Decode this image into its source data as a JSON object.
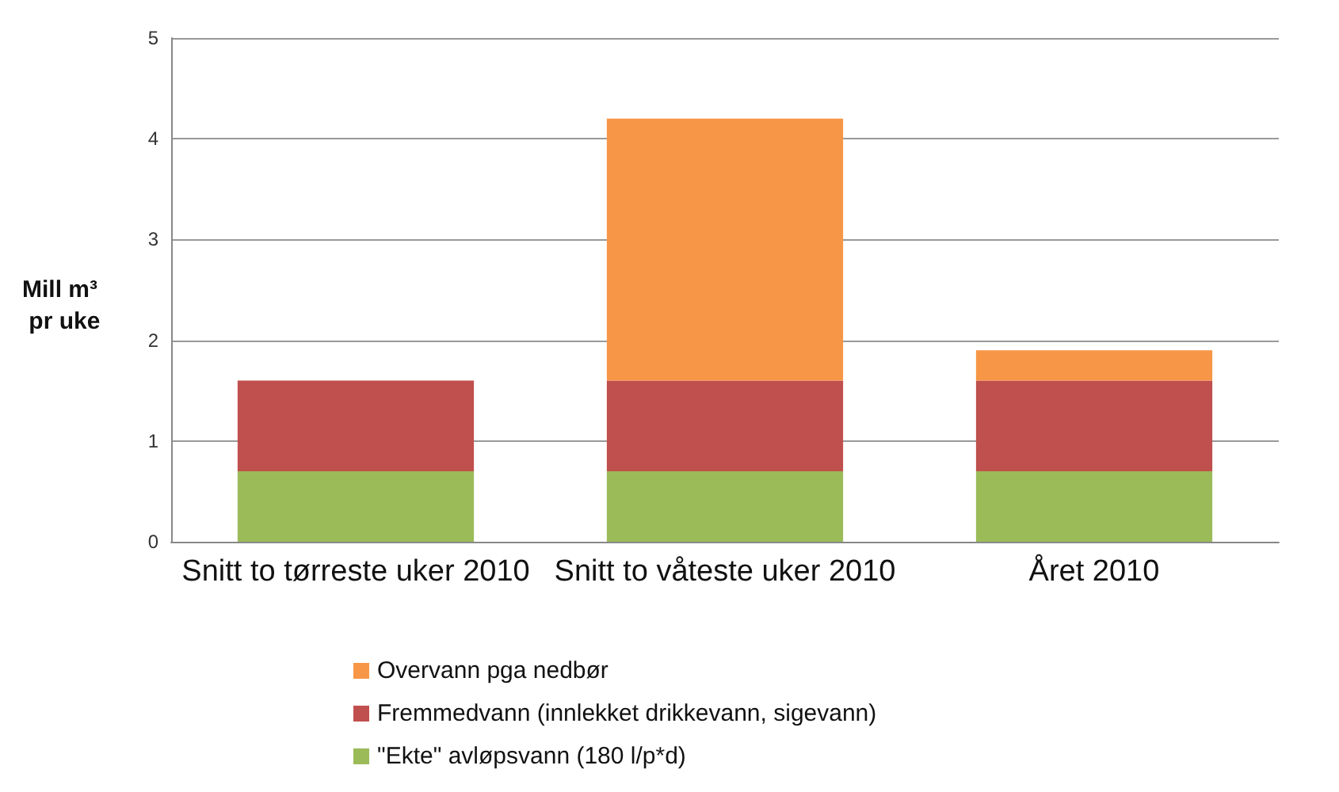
{
  "chart_data": {
    "type": "bar",
    "stacked": true,
    "ylabel": "Mill m³ pr uke",
    "categories": [
      "Snitt to tørreste uker 2010",
      "Snitt to våteste uker 2010",
      "Året 2010"
    ],
    "series": [
      {
        "name": "\"Ekte\" avløpsvann (180 l/p*d)",
        "color": "#9bbb59",
        "values": [
          0.7,
          0.7,
          0.7
        ]
      },
      {
        "name": "Fremmedvann (innlekket drikkevann, sigevann)",
        "color": "#c0504d",
        "values": [
          0.9,
          0.9,
          0.9
        ]
      },
      {
        "name": "Overvann pga nedbør",
        "color": "#f79646",
        "values": [
          null,
          2.6,
          0.3
        ]
      }
    ],
    "ylim": [
      0,
      5
    ],
    "yticks": [
      0,
      1,
      2,
      3,
      4,
      5
    ],
    "grid": "y",
    "legend": "bottom"
  }
}
